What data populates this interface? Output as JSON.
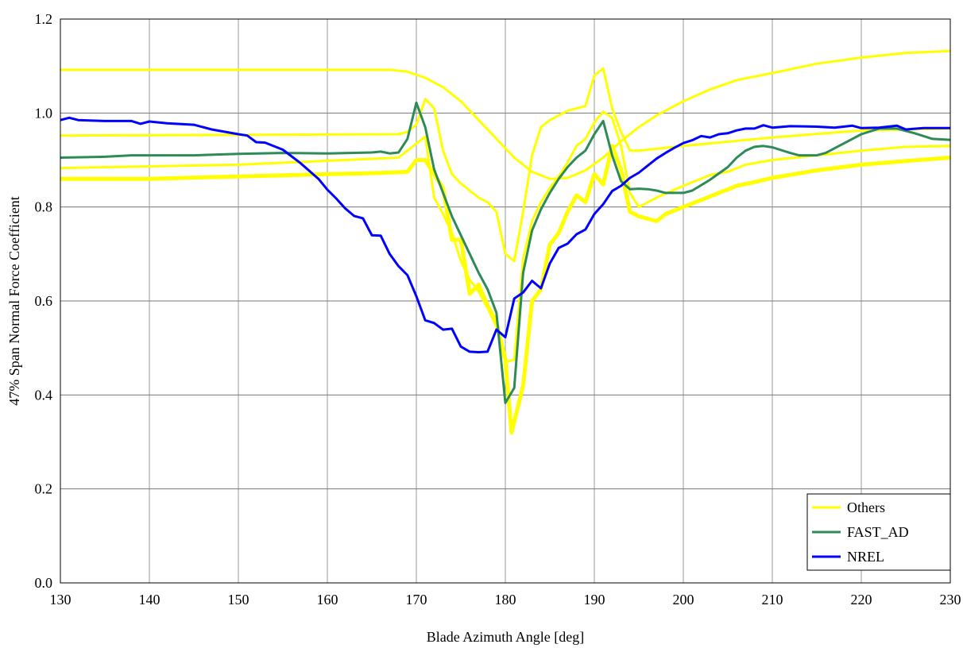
{
  "chart_data": {
    "type": "line",
    "title": "",
    "xlabel": "Blade Azimuth Angle [deg]",
    "ylabel": "47% Span Normal Force Coefficient",
    "xlim": [
      130,
      230
    ],
    "ylim": [
      0.0,
      1.2
    ],
    "xticks": [
      "130",
      "140",
      "150",
      "160",
      "170",
      "180",
      "190",
      "200",
      "210",
      "220",
      "230"
    ],
    "yticks": [
      "0.0",
      "0.2",
      "0.4",
      "0.6",
      "0.8",
      "1.0",
      "1.2"
    ],
    "grid": true,
    "legend_position": "bottom-right",
    "legend": [
      "Others",
      "FAST_AD",
      "NREL"
    ],
    "colors": {
      "Others": "#ffff00",
      "FAST_AD": "#2e8b57",
      "NREL": "#0000ff"
    },
    "series": [
      {
        "name": "Others",
        "width": 3,
        "points": [
          [
            130,
            1.092
          ],
          [
            160,
            1.092
          ],
          [
            167,
            1.092
          ],
          [
            169,
            1.088
          ],
          [
            171,
            1.075
          ],
          [
            173,
            1.055
          ],
          [
            175,
            1.025
          ],
          [
            177,
            0.985
          ],
          [
            179,
            0.945
          ],
          [
            181,
            0.905
          ],
          [
            183,
            0.875
          ],
          [
            185,
            0.86
          ],
          [
            187,
            0.862
          ],
          [
            189,
            0.878
          ],
          [
            191,
            0.905
          ],
          [
            193,
            0.94
          ],
          [
            195,
            0.97
          ],
          [
            197,
            0.995
          ],
          [
            200,
            1.025
          ],
          [
            203,
            1.05
          ],
          [
            206,
            1.07
          ],
          [
            210,
            1.085
          ],
          [
            215,
            1.105
          ],
          [
            220,
            1.118
          ],
          [
            225,
            1.128
          ],
          [
            230,
            1.132
          ]
        ]
      },
      {
        "name": "Others",
        "width": 3,
        "points": [
          [
            130,
            0.952
          ],
          [
            168,
            0.955
          ],
          [
            169,
            0.96
          ],
          [
            170,
            0.975
          ],
          [
            171,
            1.03
          ],
          [
            172,
            1.01
          ],
          [
            173,
            0.92
          ],
          [
            174,
            0.87
          ],
          [
            175,
            0.85
          ],
          [
            176,
            0.835
          ],
          [
            177,
            0.82
          ],
          [
            178,
            0.81
          ],
          [
            179,
            0.79
          ],
          [
            180,
            0.7
          ],
          [
            181,
            0.685
          ],
          [
            182,
            0.79
          ],
          [
            183,
            0.91
          ],
          [
            184,
            0.97
          ],
          [
            185,
            0.985
          ],
          [
            186,
            0.995
          ],
          [
            187,
            1.005
          ],
          [
            188,
            1.01
          ],
          [
            189,
            1.015
          ],
          [
            190,
            1.08
          ],
          [
            191,
            1.095
          ],
          [
            192,
            1.01
          ],
          [
            193,
            0.96
          ],
          [
            194,
            0.92
          ],
          [
            195,
            0.92
          ],
          [
            200,
            0.93
          ],
          [
            210,
            0.948
          ],
          [
            220,
            0.963
          ],
          [
            230,
            0.967
          ]
        ]
      },
      {
        "name": "Others",
        "width": 3,
        "points": [
          [
            130,
            0.883
          ],
          [
            150,
            0.89
          ],
          [
            168,
            0.905
          ],
          [
            169,
            0.92
          ],
          [
            170,
            0.935
          ],
          [
            171,
            0.95
          ],
          [
            172,
            0.82
          ],
          [
            173,
            0.785
          ],
          [
            174,
            0.745
          ],
          [
            175,
            0.685
          ],
          [
            176,
            0.645
          ],
          [
            177,
            0.62
          ],
          [
            178,
            0.585
          ],
          [
            179,
            0.545
          ],
          [
            180,
            0.47
          ],
          [
            181,
            0.475
          ],
          [
            182,
            0.69
          ],
          [
            183,
            0.77
          ],
          [
            184,
            0.81
          ],
          [
            185,
            0.84
          ],
          [
            186,
            0.865
          ],
          [
            187,
            0.895
          ],
          [
            188,
            0.93
          ],
          [
            189,
            0.945
          ],
          [
            190,
            0.98
          ],
          [
            191,
            1.003
          ],
          [
            192,
            0.99
          ],
          [
            193,
            0.93
          ],
          [
            194,
            0.83
          ],
          [
            195,
            0.8
          ],
          [
            197,
            0.82
          ],
          [
            200,
            0.845
          ],
          [
            203,
            0.868
          ],
          [
            205,
            0.875
          ],
          [
            207,
            0.89
          ],
          [
            210,
            0.9
          ],
          [
            215,
            0.91
          ],
          [
            220,
            0.92
          ],
          [
            225,
            0.928
          ],
          [
            230,
            0.93
          ]
        ]
      },
      {
        "name": "Others",
        "width": 5,
        "points": [
          [
            130,
            0.86
          ],
          [
            140,
            0.86
          ],
          [
            150,
            0.865
          ],
          [
            160,
            0.87
          ],
          [
            165,
            0.872
          ],
          [
            168,
            0.874
          ],
          [
            169,
            0.875
          ],
          [
            170,
            0.9
          ],
          [
            171,
            0.9
          ],
          [
            172,
            0.87
          ],
          [
            173,
            0.84
          ],
          [
            174,
            0.73
          ],
          [
            175,
            0.73
          ],
          [
            176,
            0.615
          ],
          [
            177,
            0.635
          ],
          [
            178,
            0.59
          ],
          [
            179,
            0.555
          ],
          [
            180,
            0.475
          ],
          [
            180.7,
            0.32
          ],
          [
            182,
            0.42
          ],
          [
            183,
            0.6
          ],
          [
            184,
            0.625
          ],
          [
            185,
            0.72
          ],
          [
            186,
            0.745
          ],
          [
            187,
            0.79
          ],
          [
            188,
            0.825
          ],
          [
            189,
            0.81
          ],
          [
            190,
            0.87
          ],
          [
            191,
            0.848
          ],
          [
            192,
            0.93
          ],
          [
            193,
            0.88
          ],
          [
            194,
            0.79
          ],
          [
            195,
            0.78
          ],
          [
            196,
            0.775
          ],
          [
            197,
            0.77
          ],
          [
            198,
            0.785
          ],
          [
            200,
            0.8
          ],
          [
            202,
            0.815
          ],
          [
            204,
            0.83
          ],
          [
            206,
            0.845
          ],
          [
            208,
            0.853
          ],
          [
            210,
            0.862
          ],
          [
            215,
            0.878
          ],
          [
            220,
            0.89
          ],
          [
            225,
            0.898
          ],
          [
            230,
            0.905
          ]
        ]
      },
      {
        "name": "FAST_AD",
        "width": 3,
        "points": [
          [
            130,
            0.905
          ],
          [
            135,
            0.907
          ],
          [
            138,
            0.91
          ],
          [
            145,
            0.91
          ],
          [
            150,
            0.913
          ],
          [
            155,
            0.915
          ],
          [
            160,
            0.914
          ],
          [
            165,
            0.916
          ],
          [
            166,
            0.918
          ],
          [
            167,
            0.914
          ],
          [
            168,
            0.916
          ],
          [
            169,
            0.945
          ],
          [
            170,
            1.022
          ],
          [
            171,
            0.97
          ],
          [
            172,
            0.88
          ],
          [
            173,
            0.83
          ],
          [
            174,
            0.78
          ],
          [
            175,
            0.74
          ],
          [
            176,
            0.7
          ],
          [
            177,
            0.66
          ],
          [
            178,
            0.625
          ],
          [
            179,
            0.575
          ],
          [
            180,
            0.383
          ],
          [
            181,
            0.415
          ],
          [
            182,
            0.66
          ],
          [
            183,
            0.75
          ],
          [
            184,
            0.795
          ],
          [
            185,
            0.83
          ],
          [
            186,
            0.86
          ],
          [
            187,
            0.885
          ],
          [
            188,
            0.905
          ],
          [
            189,
            0.92
          ],
          [
            190,
            0.955
          ],
          [
            191,
            0.983
          ],
          [
            192,
            0.91
          ],
          [
            193,
            0.855
          ],
          [
            194,
            0.838
          ],
          [
            195,
            0.839
          ],
          [
            196,
            0.838
          ],
          [
            197,
            0.835
          ],
          [
            198,
            0.83
          ],
          [
            200,
            0.83
          ],
          [
            201,
            0.835
          ],
          [
            203,
            0.858
          ],
          [
            205,
            0.885
          ],
          [
            206,
            0.905
          ],
          [
            207,
            0.92
          ],
          [
            208,
            0.928
          ],
          [
            209,
            0.93
          ],
          [
            210,
            0.927
          ],
          [
            212,
            0.915
          ],
          [
            213,
            0.91
          ],
          [
            215,
            0.91
          ],
          [
            216,
            0.915
          ],
          [
            218,
            0.935
          ],
          [
            220,
            0.955
          ],
          [
            222,
            0.967
          ],
          [
            224,
            0.967
          ],
          [
            226,
            0.957
          ],
          [
            228,
            0.945
          ],
          [
            230,
            0.943
          ]
        ]
      },
      {
        "name": "NREL",
        "width": 3,
        "points": [
          [
            130,
            0.985
          ],
          [
            131,
            0.99
          ],
          [
            132,
            0.985
          ],
          [
            135,
            0.983
          ],
          [
            138,
            0.983
          ],
          [
            139,
            0.977
          ],
          [
            140,
            0.982
          ],
          [
            142,
            0.978
          ],
          [
            145,
            0.975
          ],
          [
            147,
            0.965
          ],
          [
            150,
            0.955
          ],
          [
            151,
            0.952
          ],
          [
            152,
            0.938
          ],
          [
            153,
            0.937
          ],
          [
            155,
            0.922
          ],
          [
            157,
            0.893
          ],
          [
            159,
            0.86
          ],
          [
            160,
            0.837
          ],
          [
            161,
            0.818
          ],
          [
            162,
            0.797
          ],
          [
            163,
            0.781
          ],
          [
            164,
            0.776
          ],
          [
            165,
            0.74
          ],
          [
            166,
            0.739
          ],
          [
            167,
            0.7
          ],
          [
            168,
            0.674
          ],
          [
            169,
            0.655
          ],
          [
            170,
            0.61
          ],
          [
            171,
            0.559
          ],
          [
            172,
            0.553
          ],
          [
            173,
            0.539
          ],
          [
            174,
            0.541
          ],
          [
            175,
            0.503
          ],
          [
            176,
            0.492
          ],
          [
            177,
            0.491
          ],
          [
            178,
            0.492
          ],
          [
            179,
            0.539
          ],
          [
            180,
            0.523
          ],
          [
            181,
            0.605
          ],
          [
            182,
            0.618
          ],
          [
            183,
            0.643
          ],
          [
            184,
            0.627
          ],
          [
            185,
            0.68
          ],
          [
            186,
            0.713
          ],
          [
            187,
            0.722
          ],
          [
            188,
            0.742
          ],
          [
            189,
            0.752
          ],
          [
            190,
            0.785
          ],
          [
            191,
            0.806
          ],
          [
            192,
            0.834
          ],
          [
            193,
            0.845
          ],
          [
            194,
            0.862
          ],
          [
            195,
            0.873
          ],
          [
            196,
            0.888
          ],
          [
            197,
            0.903
          ],
          [
            198,
            0.915
          ],
          [
            199,
            0.926
          ],
          [
            200,
            0.936
          ],
          [
            201,
            0.942
          ],
          [
            202,
            0.951
          ],
          [
            203,
            0.948
          ],
          [
            204,
            0.955
          ],
          [
            205,
            0.957
          ],
          [
            206,
            0.963
          ],
          [
            207,
            0.967
          ],
          [
            208,
            0.967
          ],
          [
            209,
            0.974
          ],
          [
            210,
            0.969
          ],
          [
            212,
            0.972
          ],
          [
            215,
            0.971
          ],
          [
            217,
            0.969
          ],
          [
            219,
            0.973
          ],
          [
            220,
            0.968
          ],
          [
            222,
            0.969
          ],
          [
            224,
            0.973
          ],
          [
            225,
            0.965
          ],
          [
            227,
            0.968
          ],
          [
            230,
            0.968
          ]
        ]
      }
    ]
  }
}
